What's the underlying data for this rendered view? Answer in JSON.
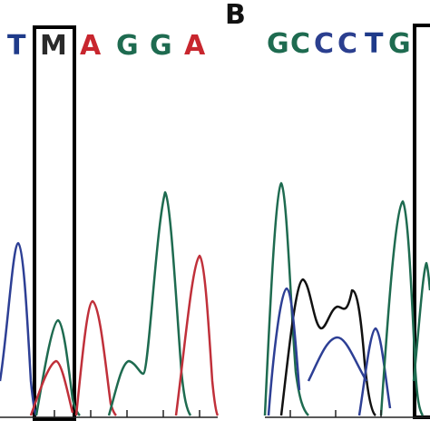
{
  "figure": {
    "panel_b_label": "B",
    "colors": {
      "A": "#c8262e",
      "C": "#2b3f8f",
      "G": "#1d1d1d",
      "T": "#1f3b8a",
      "M": "#2a2a2a",
      "green_trace": "#1e6b50",
      "red_trace": "#c0303a",
      "blue_trace": "#2d3f95",
      "black_trace": "#111111",
      "highlight_box": "#000000"
    }
  },
  "panel_a": {
    "sequence": [
      "T",
      "M",
      "A",
      "G",
      "G",
      "A"
    ],
    "base_colors": [
      "#1f3b8a",
      "#2a2a2a",
      "#c8262e",
      "#1e6b50",
      "#1e6b50",
      "#c8262e"
    ],
    "highlighted_base": "M",
    "highlight_box_icon": "highlight-box-icon"
  },
  "panel_b": {
    "sequence": [
      "G",
      "C",
      "C",
      "C",
      "T",
      "G"
    ],
    "base_colors": [
      "#1e6b50",
      "#1e6b50",
      "#2b3f8f",
      "#2b3f8f",
      "#1f3b8a",
      "#1e6b50"
    ],
    "highlight_box_icon": "highlight-box-icon"
  }
}
